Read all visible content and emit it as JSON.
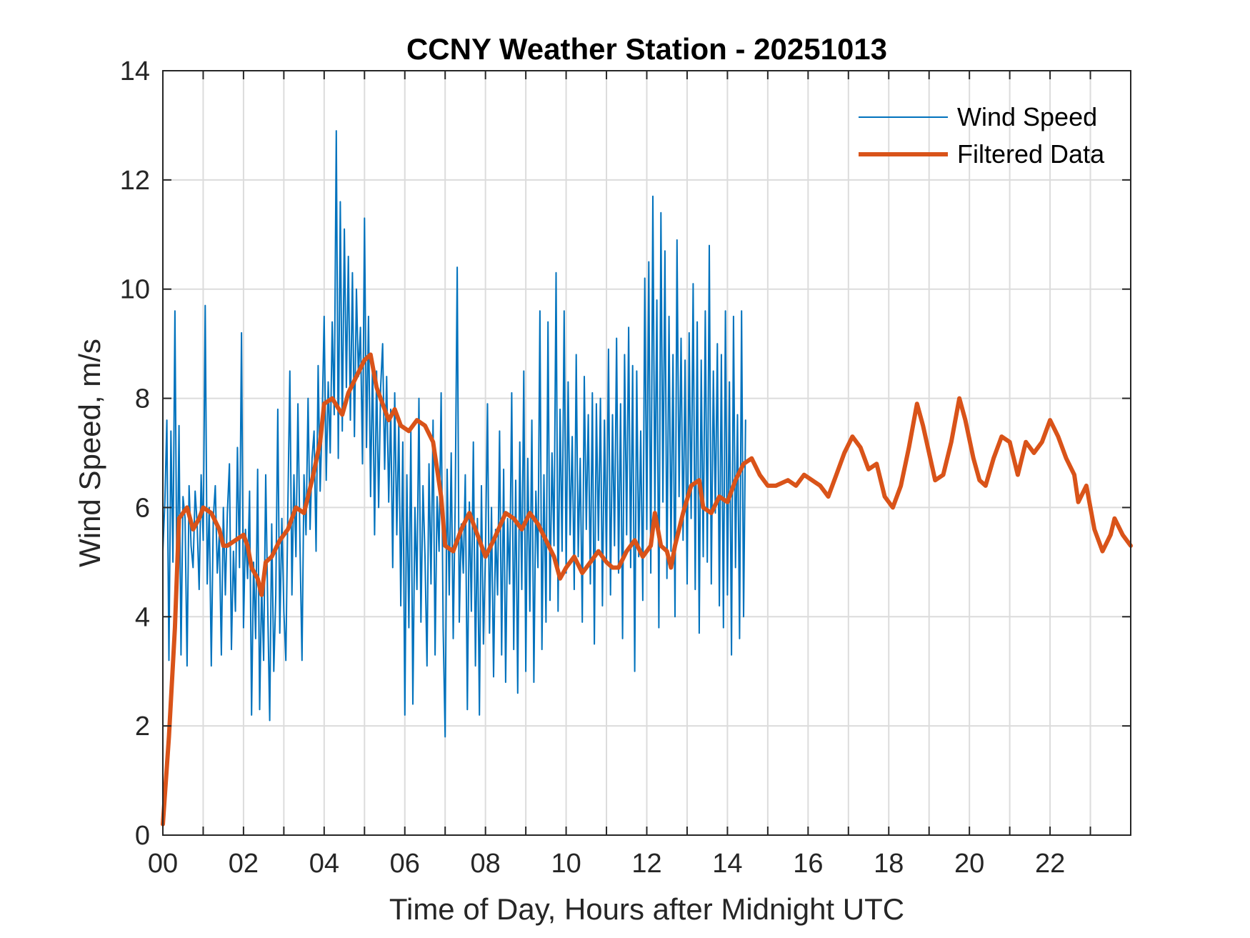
{
  "chart_data": {
    "type": "line",
    "title": "CCNY Weather Station - 20251013",
    "xlabel": "Time of Day, Hours after Midnight UTC",
    "ylabel": "Wind Speed, m/s",
    "xlim": [
      0,
      24
    ],
    "ylim": [
      0,
      14
    ],
    "grid": true,
    "legend_placement": "top-right",
    "x_ticks": [
      0,
      2,
      4,
      6,
      8,
      10,
      12,
      14,
      16,
      18,
      20,
      22
    ],
    "x_tick_labels": [
      "00",
      "02",
      "04",
      "06",
      "08",
      "10",
      "12",
      "14",
      "16",
      "18",
      "20",
      "22"
    ],
    "x_minor_ticks": [
      1,
      3,
      5,
      7,
      9,
      11,
      13,
      15,
      17,
      19,
      21,
      23
    ],
    "y_ticks": [
      0,
      2,
      4,
      6,
      8,
      10,
      12,
      14
    ],
    "y_tick_labels": [
      "0",
      "2",
      "4",
      "6",
      "8",
      "10",
      "12",
      "14"
    ],
    "series": [
      {
        "name": "Wind Speed",
        "color": "#0072BD",
        "x_start": 0,
        "x_step": 0.05,
        "values": [
          5.2,
          6.1,
          7.6,
          3.2,
          7.4,
          5.0,
          9.6,
          4.2,
          7.5,
          3.3,
          6.2,
          5.8,
          3.1,
          6.4,
          5.3,
          4.9,
          6.3,
          5.7,
          4.5,
          6.6,
          5.4,
          9.7,
          4.6,
          6.0,
          3.1,
          5.8,
          6.4,
          4.8,
          5.5,
          3.3,
          6.0,
          4.4,
          5.9,
          6.8,
          3.4,
          5.2,
          4.1,
          7.1,
          4.9,
          9.2,
          3.8,
          5.6,
          4.7,
          6.3,
          2.2,
          5.0,
          3.6,
          6.7,
          2.3,
          4.6,
          3.2,
          6.6,
          4.2,
          2.1,
          5.7,
          3.0,
          4.4,
          7.8,
          3.7,
          5.8,
          4.1,
          3.2,
          6.0,
          8.5,
          4.4,
          6.6,
          5.1,
          7.9,
          5.3,
          3.2,
          6.6,
          5.5,
          8.0,
          5.6,
          6.9,
          7.4,
          5.2,
          8.6,
          6.3,
          7.6,
          9.5,
          6.5,
          8.3,
          7.0,
          9.4,
          7.7,
          12.9,
          6.9,
          11.6,
          7.4,
          11.1,
          8.2,
          10.6,
          7.6,
          10.3,
          7.3,
          10.0,
          8.4,
          9.3,
          6.8,
          11.3,
          7.1,
          9.5,
          6.2,
          8.7,
          5.5,
          8.5,
          6.0,
          8.2,
          9.0,
          6.7,
          8.4,
          6.1,
          7.8,
          4.9,
          8.1,
          5.5,
          7.6,
          4.2,
          7.2,
          2.2,
          6.6,
          3.8,
          7.4,
          2.4,
          6.0,
          4.5,
          8.0,
          3.9,
          6.4,
          5.1,
          3.1,
          6.8,
          4.6,
          7.6,
          3.3,
          6.2,
          5.2,
          8.1,
          3.8,
          1.8,
          6.7,
          4.4,
          7.0,
          3.6,
          6.1,
          10.4,
          3.9,
          5.7,
          4.8,
          6.6,
          2.3,
          6.1,
          4.1,
          7.2,
          3.1,
          5.8,
          2.2,
          6.4,
          3.5,
          5.2,
          7.9,
          3.7,
          6.0,
          2.9,
          5.6,
          4.4,
          7.4,
          3.3,
          6.7,
          2.8,
          5.8,
          4.6,
          8.1,
          3.4,
          6.5,
          2.6,
          7.2,
          4.5,
          8.5,
          3.0,
          6.9,
          4.1,
          7.6,
          2.8,
          6.3,
          4.9,
          9.6,
          3.4,
          6.6,
          3.9,
          9.4,
          4.3,
          7.0,
          5.3,
          10.3,
          4.1,
          7.8,
          5.2,
          9.6,
          4.8,
          8.3,
          5.5,
          7.3,
          4.5,
          8.8,
          5.1,
          6.9,
          3.9,
          8.4,
          5.6,
          7.7,
          4.6,
          8.1,
          3.5,
          7.9,
          5.4,
          8.0,
          4.2,
          7.6,
          5.0,
          8.9,
          4.4,
          7.7,
          5.3,
          9.1,
          4.8,
          7.9,
          3.6,
          8.8,
          5.5,
          9.3,
          4.9,
          8.6,
          3.0,
          8.5,
          5.1,
          7.4,
          4.3,
          10.2,
          5.6,
          10.5,
          4.8,
          11.7,
          5.9,
          9.8,
          3.8,
          11.4,
          6.1,
          10.7,
          4.7,
          9.5,
          5.2,
          8.8,
          4.0,
          10.9,
          6.2,
          9.1,
          5.4,
          8.7,
          4.6,
          9.2,
          5.8,
          10.1,
          4.5,
          9.4,
          3.7,
          8.7,
          5.1,
          9.6,
          5.0,
          10.8,
          4.6,
          8.5,
          5.9,
          9.0,
          4.2,
          8.8,
          3.8,
          9.6,
          4.4,
          8.3,
          3.3,
          9.5,
          4.9,
          7.7,
          3.6,
          9.6,
          4.0,
          7.6
        ]
      },
      {
        "name": "Filtered Data",
        "color": "#D95319",
        "x": [
          0,
          0.15,
          0.3,
          0.4,
          0.5,
          0.6,
          0.75,
          0.9,
          1.0,
          1.2,
          1.4,
          1.5,
          1.6,
          1.8,
          2.0,
          2.1,
          2.2,
          2.35,
          2.45,
          2.55,
          2.7,
          2.9,
          3.1,
          3.3,
          3.5,
          3.7,
          3.9,
          4.0,
          4.2,
          4.45,
          4.6,
          4.8,
          5.0,
          5.15,
          5.3,
          5.5,
          5.6,
          5.75,
          5.9,
          6.1,
          6.3,
          6.5,
          6.7,
          6.9,
          7.0,
          7.2,
          7.4,
          7.6,
          7.8,
          8.0,
          8.2,
          8.5,
          8.7,
          8.9,
          9.1,
          9.3,
          9.5,
          9.7,
          9.85,
          10.0,
          10.2,
          10.4,
          10.6,
          10.8,
          11.0,
          11.15,
          11.3,
          11.5,
          11.7,
          11.9,
          12.1,
          12.2,
          12.35,
          12.5,
          12.6,
          12.7,
          12.9,
          13.1,
          13.3,
          13.4,
          13.6,
          13.8,
          14.0,
          14.2,
          14.4,
          14.6,
          14.8,
          15.0,
          15.2,
          15.5,
          15.7,
          15.9,
          16.1,
          16.3,
          16.5,
          16.7,
          16.9,
          17.1,
          17.3,
          17.5,
          17.7,
          17.9,
          18.1,
          18.3,
          18.5,
          18.7,
          18.85,
          19.0,
          19.15,
          19.35,
          19.55,
          19.75,
          19.9,
          20.1,
          20.25,
          20.4,
          20.6,
          20.8,
          21.0,
          21.2,
          21.4,
          21.6,
          21.8,
          22.0,
          22.2,
          22.4,
          22.6,
          22.7,
          22.9,
          23.1,
          23.3,
          23.5,
          23.6,
          23.8,
          24.0
        ],
        "values": [
          0.2,
          1.8,
          3.8,
          5.8,
          5.9,
          6.0,
          5.6,
          5.8,
          6.0,
          5.9,
          5.6,
          5.3,
          5.3,
          5.4,
          5.5,
          5.3,
          4.9,
          4.7,
          4.4,
          5.0,
          5.1,
          5.4,
          5.6,
          6.0,
          5.9,
          6.5,
          7.2,
          7.9,
          8.0,
          7.7,
          8.1,
          8.4,
          8.7,
          8.8,
          8.2,
          7.8,
          7.6,
          7.8,
          7.5,
          7.4,
          7.6,
          7.5,
          7.2,
          6.2,
          5.3,
          5.2,
          5.6,
          5.9,
          5.5,
          5.1,
          5.4,
          5.9,
          5.8,
          5.6,
          5.9,
          5.7,
          5.4,
          5.1,
          4.7,
          4.9,
          5.1,
          4.8,
          5.0,
          5.2,
          5.0,
          4.9,
          4.9,
          5.2,
          5.4,
          5.1,
          5.3,
          5.9,
          5.3,
          5.2,
          4.9,
          5.3,
          5.9,
          6.4,
          6.5,
          6.0,
          5.9,
          6.2,
          6.1,
          6.5,
          6.8,
          6.9,
          6.6,
          6.4,
          6.4,
          6.5,
          6.4,
          6.6,
          6.5,
          6.4,
          6.2,
          6.6,
          7.0,
          7.3,
          7.1,
          6.7,
          6.8,
          6.2,
          6.0,
          6.4,
          7.1,
          7.9,
          7.5,
          7.0,
          6.5,
          6.6,
          7.2,
          8.0,
          7.6,
          6.9,
          6.5,
          6.4,
          6.9,
          7.3,
          7.2,
          6.6,
          7.2,
          7.0,
          7.2,
          7.6,
          7.3,
          6.9,
          6.6,
          6.1,
          6.4,
          5.6,
          5.2,
          5.5,
          5.8,
          5.5,
          5.3
        ]
      }
    ]
  }
}
